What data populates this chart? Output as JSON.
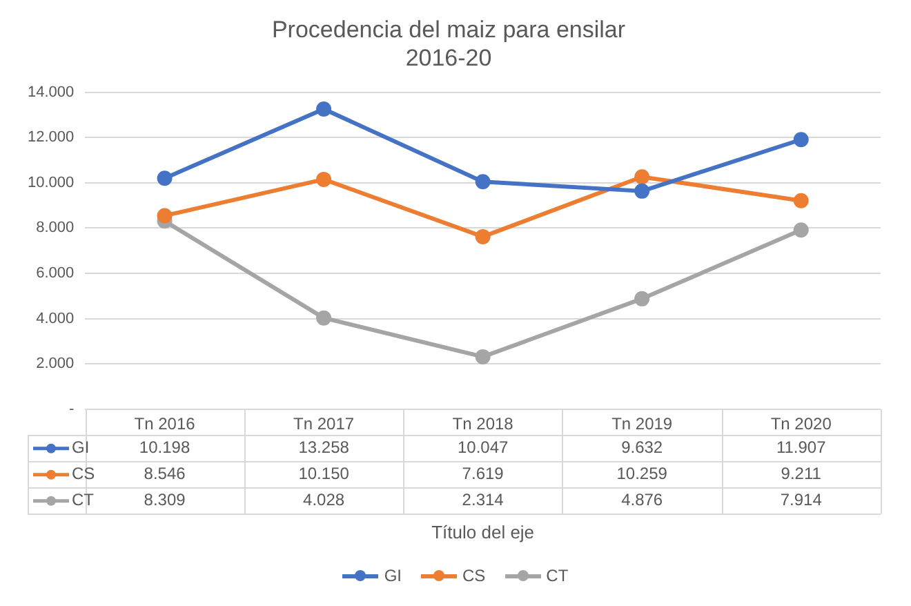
{
  "chart_data": {
    "type": "line",
    "title": [
      "Procedencia del maiz para ensilar",
      "2016-20"
    ],
    "categories": [
      "Tn 2016",
      "Tn 2017",
      "Tn 2018",
      "Tn 2019",
      "Tn 2020"
    ],
    "series": [
      {
        "name": "GI",
        "color": "#4472c4",
        "values": [
          10198,
          13258,
          10047,
          9632,
          11907
        ],
        "value_labels": [
          "10.198",
          "13.258",
          "10.047",
          "9.632",
          "11.907"
        ]
      },
      {
        "name": "CS",
        "color": "#ed7d31",
        "values": [
          8546,
          10150,
          7619,
          10259,
          9211
        ],
        "value_labels": [
          "8.546",
          "10.150",
          "7.619",
          "10.259",
          "9.211"
        ]
      },
      {
        "name": "CT",
        "color": "#a5a5a5",
        "values": [
          8309,
          4028,
          2314,
          4876,
          7914
        ],
        "value_labels": [
          "8.309",
          "4.028",
          "2.314",
          "4.876",
          "7.914"
        ]
      }
    ],
    "annotations": [
      "Título del eje"
    ],
    "ylim": [
      0,
      14000
    ],
    "yticks": [
      {
        "value": 0,
        "label": "-"
      },
      {
        "value": 2000,
        "label": "2.000"
      },
      {
        "value": 4000,
        "label": "4.000"
      },
      {
        "value": 6000,
        "label": "6.000"
      },
      {
        "value": 8000,
        "label": "8.000"
      },
      {
        "value": 10000,
        "label": "10.000"
      },
      {
        "value": 12000,
        "label": "12.000"
      },
      {
        "value": 14000,
        "label": "14.000"
      }
    ],
    "grid": "y",
    "legend": "bottom",
    "marker": "circle",
    "line_style": "solid"
  }
}
